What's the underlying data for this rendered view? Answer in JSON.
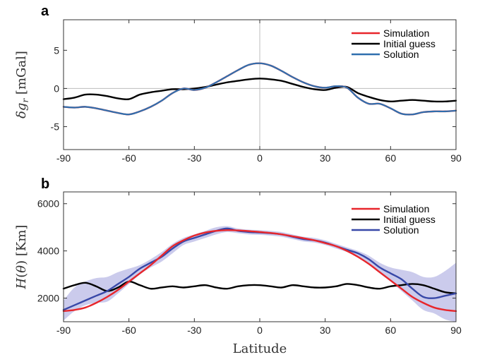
{
  "chart_data": [
    {
      "panel": "a",
      "type": "line",
      "ylabel": "δg_r [mGal]",
      "xlabel": "",
      "xlim": [
        -90,
        90
      ],
      "ylim": [
        -8,
        9
      ],
      "xticks": [
        -90,
        -60,
        -30,
        0,
        30,
        60,
        90
      ],
      "yticks": [
        -5,
        0,
        5
      ],
      "grid": false,
      "reference_lines": [
        "x=0",
        "y=0"
      ],
      "legend": {
        "placement": "top-right"
      },
      "x": [
        -90,
        -85,
        -80,
        -75,
        -70,
        -65,
        -60,
        -55,
        -50,
        -45,
        -40,
        -35,
        -30,
        -25,
        -20,
        -15,
        -10,
        -5,
        0,
        5,
        10,
        15,
        20,
        25,
        30,
        35,
        40,
        45,
        50,
        55,
        60,
        65,
        70,
        75,
        80,
        85,
        90
      ],
      "series": [
        {
          "name": "Simulation",
          "color": "#e8262b",
          "values": [
            -2.4,
            -2.5,
            -2.4,
            -2.6,
            -2.9,
            -3.2,
            -3.4,
            -3.0,
            -2.4,
            -1.6,
            -0.6,
            0.0,
            -0.2,
            0.1,
            0.8,
            1.6,
            2.4,
            3.1,
            3.3,
            3.0,
            2.3,
            1.5,
            0.8,
            0.3,
            0.1,
            0.3,
            0.1,
            -1.2,
            -2.0,
            -2.0,
            -2.6,
            -3.3,
            -3.4,
            -3.1,
            -3.0,
            -3.0,
            -2.9
          ]
        },
        {
          "name": "Initial guess",
          "color": "#000000",
          "values": [
            -1.4,
            -1.2,
            -0.8,
            -0.8,
            -1.0,
            -1.3,
            -1.4,
            -0.8,
            -0.5,
            -0.3,
            -0.1,
            -0.1,
            0.0,
            0.2,
            0.5,
            0.8,
            1.0,
            1.2,
            1.3,
            1.2,
            1.0,
            0.6,
            0.2,
            -0.1,
            -0.2,
            0.1,
            0.2,
            -0.6,
            -1.1,
            -1.5,
            -1.7,
            -1.6,
            -1.5,
            -1.6,
            -1.7,
            -1.7,
            -1.6
          ]
        },
        {
          "name": "Solution",
          "color": "#2f6fae",
          "values": [
            -2.4,
            -2.5,
            -2.4,
            -2.6,
            -2.9,
            -3.2,
            -3.4,
            -3.0,
            -2.4,
            -1.6,
            -0.6,
            0.0,
            -0.2,
            0.1,
            0.8,
            1.6,
            2.4,
            3.1,
            3.3,
            3.0,
            2.3,
            1.5,
            0.8,
            0.3,
            0.1,
            0.3,
            0.1,
            -1.2,
            -2.0,
            -2.0,
            -2.6,
            -3.3,
            -3.4,
            -3.1,
            -3.0,
            -3.0,
            -2.9
          ]
        }
      ]
    },
    {
      "panel": "b",
      "type": "line",
      "ylabel": "H(θ) [Km]",
      "xlabel": "Latitude",
      "xlim": [
        -90,
        90
      ],
      "ylim": [
        1000,
        6500
      ],
      "xticks": [
        -90,
        -60,
        -30,
        0,
        30,
        60,
        90
      ],
      "yticks": [
        2000,
        4000,
        6000
      ],
      "grid": false,
      "legend": {
        "placement": "top-right"
      },
      "x": [
        -90,
        -85,
        -80,
        -75,
        -70,
        -65,
        -60,
        -55,
        -50,
        -45,
        -40,
        -35,
        -30,
        -25,
        -20,
        -15,
        -10,
        -5,
        0,
        5,
        10,
        15,
        20,
        25,
        30,
        35,
        40,
        45,
        50,
        55,
        60,
        65,
        70,
        75,
        80,
        85,
        90
      ],
      "series": [
        {
          "name": "Simulation",
          "color": "#e8262b",
          "values": [
            1450,
            1500,
            1600,
            1800,
            2050,
            2350,
            2700,
            3050,
            3400,
            3800,
            4200,
            4450,
            4650,
            4780,
            4850,
            4880,
            4870,
            4840,
            4800,
            4760,
            4700,
            4620,
            4540,
            4450,
            4330,
            4200,
            4000,
            3750,
            3450,
            3100,
            2750,
            2400,
            2050,
            1800,
            1600,
            1500,
            1450
          ]
        },
        {
          "name": "Initial guess",
          "color": "#000000",
          "values": [
            2400,
            2550,
            2650,
            2500,
            2300,
            2450,
            2700,
            2550,
            2400,
            2450,
            2500,
            2450,
            2500,
            2550,
            2450,
            2400,
            2500,
            2550,
            2550,
            2500,
            2450,
            2550,
            2500,
            2450,
            2450,
            2500,
            2600,
            2550,
            2450,
            2400,
            2500,
            2550,
            2600,
            2550,
            2400,
            2250,
            2200
          ]
        },
        {
          "name": "Solution",
          "color": "#3848a8",
          "values": [
            1500,
            1700,
            1900,
            2100,
            2300,
            2600,
            2900,
            3250,
            3500,
            3750,
            4100,
            4400,
            4550,
            4700,
            4850,
            4950,
            4850,
            4800,
            4780,
            4750,
            4700,
            4600,
            4500,
            4450,
            4350,
            4200,
            4050,
            3900,
            3650,
            3300,
            3050,
            2800,
            2400,
            2050,
            2000,
            2100,
            2200
          ]
        },
        {
          "name": "band_upper",
          "values": [
            1900,
            2450,
            2700,
            2850,
            2900,
            3100,
            3250,
            3400,
            3650,
            3950,
            4300,
            4550,
            4700,
            4850,
            5000,
            5050,
            4950,
            4900,
            4880,
            4850,
            4800,
            4700,
            4600,
            4550,
            4450,
            4300,
            4150,
            4000,
            3800,
            3500,
            3300,
            3200,
            3100,
            2900,
            2900,
            3150,
            3500
          ]
        },
        {
          "name": "band_lower",
          "values": [
            1050,
            1450,
            1700,
            1800,
            1850,
            2200,
            2600,
            3000,
            3300,
            3550,
            3900,
            4250,
            4400,
            4550,
            4700,
            4800,
            4750,
            4700,
            4680,
            4650,
            4600,
            4500,
            4400,
            4350,
            4250,
            4100,
            3950,
            3750,
            3450,
            3050,
            2700,
            2300,
            1900,
            1500,
            1350,
            1100,
            1000
          ]
        }
      ]
    }
  ]
}
